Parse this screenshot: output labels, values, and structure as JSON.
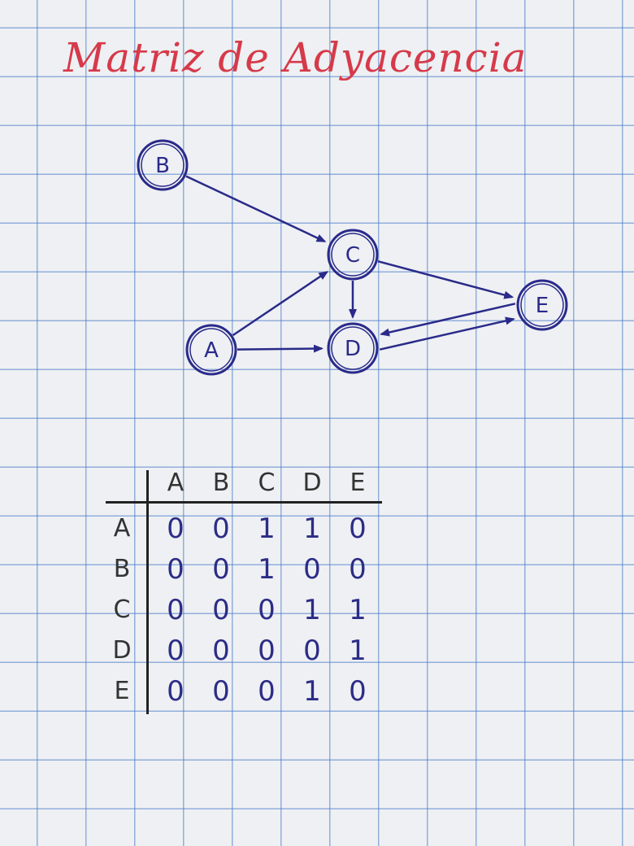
{
  "title": "Matriz de Adyacencia",
  "graph": {
    "nodes": [
      {
        "id": "A",
        "label": "A"
      },
      {
        "id": "B",
        "label": "B"
      },
      {
        "id": "C",
        "label": "C"
      },
      {
        "id": "D",
        "label": "D"
      },
      {
        "id": "E",
        "label": "E"
      }
    ],
    "edges": [
      {
        "from": "B",
        "to": "C"
      },
      {
        "from": "A",
        "to": "C"
      },
      {
        "from": "A",
        "to": "D"
      },
      {
        "from": "C",
        "to": "D"
      },
      {
        "from": "C",
        "to": "E"
      },
      {
        "from": "D",
        "to": "E"
      },
      {
        "from": "E",
        "to": "D"
      }
    ],
    "ink_color": "#2a2a8a",
    "title_color": "#d63a4a"
  },
  "matrix": {
    "columns": [
      "A",
      "B",
      "C",
      "D",
      "E"
    ],
    "rows": [
      {
        "label": "A",
        "values": [
          "0",
          "0",
          "1",
          "1",
          "0"
        ]
      },
      {
        "label": "B",
        "values": [
          "0",
          "0",
          "1",
          "0",
          "0"
        ]
      },
      {
        "label": "C",
        "values": [
          "0",
          "0",
          "0",
          "1",
          "1"
        ]
      },
      {
        "label": "D",
        "values": [
          "0",
          "0",
          "0",
          "0",
          "1"
        ]
      },
      {
        "label": "E",
        "values": [
          "0",
          "0",
          "0",
          "1",
          "0"
        ]
      }
    ]
  }
}
